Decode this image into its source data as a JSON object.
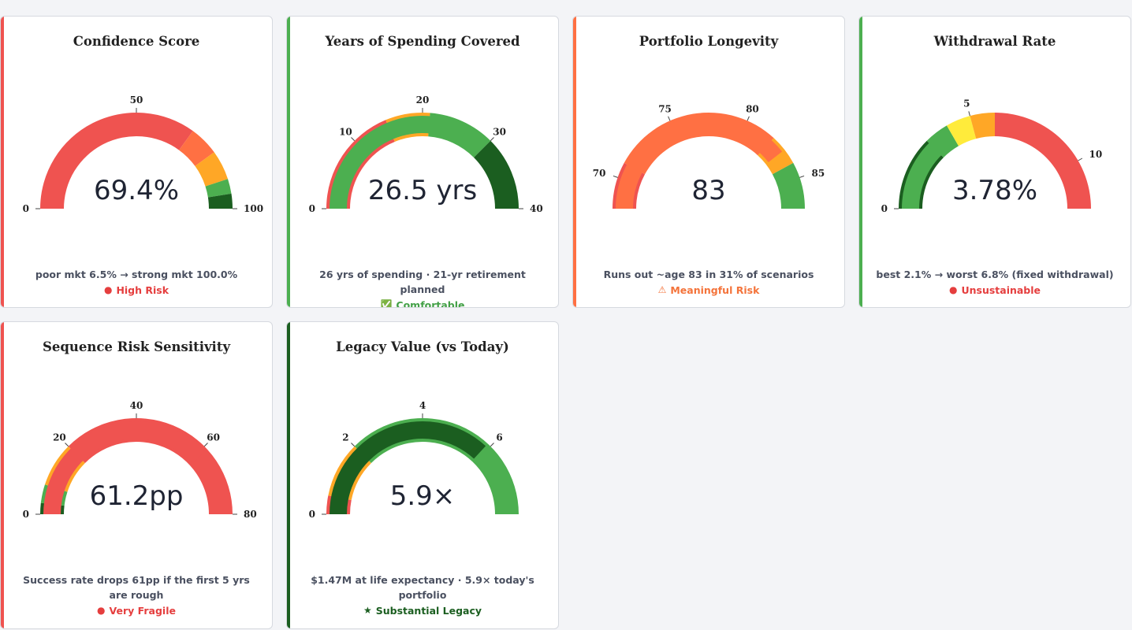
{
  "cards": [
    {
      "title": "Confidence Score",
      "value": "69.4%",
      "caption": "poor mkt 6.5% → strong mkt 100.0%",
      "status": "High Risk",
      "status_icon": "red-circle-icon",
      "status_glyph": "●",
      "accent": "#ef5350",
      "status_color": "#e53e3e",
      "gauge": {
        "min": 0,
        "max": 100,
        "ticks": [
          0,
          50,
          100
        ],
        "bands": [
          {
            "from": 0,
            "to": 70,
            "color": "#ef5350"
          },
          {
            "from": 70,
            "to": 80,
            "color": "#ff7043"
          },
          {
            "from": 80,
            "to": 90,
            "color": "#ffa726"
          },
          {
            "from": 90,
            "to": 95,
            "color": "#4caf50"
          },
          {
            "from": 95,
            "to": 100,
            "color": "#1b5e20"
          }
        ],
        "bar": null
      }
    },
    {
      "title": "Years of Spending Covered",
      "value": "26.5 yrs",
      "caption": "26 yrs of spending · 21-yr retirement planned",
      "status": "Comfortable",
      "status_icon": "check-box-icon",
      "status_glyph": "✅",
      "accent": "#4caf50",
      "status_color": "#43a047",
      "gauge": {
        "min": 0,
        "max": 40,
        "ticks": [
          0,
          10,
          20,
          30,
          40
        ],
        "bands": [
          {
            "from": 0,
            "to": 15,
            "color": "#ef5350"
          },
          {
            "from": 15,
            "to": 21,
            "color": "#ffa726"
          },
          {
            "from": 21,
            "to": 30,
            "color": "#4caf50"
          },
          {
            "from": 30,
            "to": 40,
            "color": "#1b5e20"
          }
        ],
        "bar": {
          "value": 26.5,
          "color": "#4caf50"
        }
      }
    },
    {
      "title": "Portfolio Longevity",
      "value": "83",
      "caption": "Runs out ~age 83 in 31% of scenarios",
      "status": "Meaningful Risk",
      "status_icon": "warning-icon",
      "status_glyph": "⚠",
      "accent": "#ff7043",
      "status_color": "#f4733a",
      "gauge": {
        "min": 68,
        "max": 87,
        "ticks": [
          70,
          75,
          80,
          85
        ],
        "bands": [
          {
            "from": 68,
            "to": 71,
            "color": "#ef5350"
          },
          {
            "from": 71,
            "to": 82,
            "color": "#ff7043"
          },
          {
            "from": 82,
            "to": 84,
            "color": "#ffa726"
          },
          {
            "from": 84,
            "to": 87,
            "color": "#4caf50"
          }
        ],
        "bar": {
          "value": 83,
          "color": "#ff7043"
        }
      }
    },
    {
      "title": "Withdrawal Rate",
      "value": "3.78%",
      "caption": "best 2.1% → worst 6.8% (fixed withdrawal)",
      "status": "Unsustainable",
      "status_icon": "red-circle-icon",
      "status_glyph": "●",
      "accent": "#4caf50",
      "status_color": "#e53e3e",
      "gauge": {
        "min": 0,
        "max": 12,
        "ticks": [
          0,
          5,
          10
        ],
        "bands": [
          {
            "from": 0,
            "to": 3,
            "color": "#1b5e20"
          },
          {
            "from": 3,
            "to": 4,
            "color": "#4caf50"
          },
          {
            "from": 4,
            "to": 5,
            "color": "#ffeb3b"
          },
          {
            "from": 5,
            "to": 6,
            "color": "#ffa726"
          },
          {
            "from": 6,
            "to": 12,
            "color": "#ef5350"
          }
        ],
        "bar": {
          "value": 3.78,
          "color": "#4caf50"
        }
      }
    },
    {
      "title": "Sequence Risk Sensitivity",
      "value": "61.2pp",
      "caption": "Success rate drops 61pp if the first 5 yrs are rough",
      "status": "Very Fragile",
      "status_icon": "red-circle-icon",
      "status_glyph": "●",
      "accent": "#ef5350",
      "status_color": "#e53e3e",
      "gauge": {
        "min": 0,
        "max": 80,
        "ticks": [
          0,
          20,
          40,
          60,
          80
        ],
        "bands": [
          {
            "from": 0,
            "to": 3,
            "color": "#1b5e20"
          },
          {
            "from": 3,
            "to": 8,
            "color": "#4caf50"
          },
          {
            "from": 8,
            "to": 20,
            "color": "#ffa726"
          },
          {
            "from": 20,
            "to": 80,
            "color": "#ef5350"
          }
        ],
        "bar": {
          "value": 61.2,
          "color": "#ef5350"
        }
      }
    },
    {
      "title": "Legacy Value (vs Today)",
      "value": "5.9×",
      "caption": "$1.47M at life expectancy · 5.9× today's portfolio",
      "status": "Substantial Legacy",
      "status_icon": "star-icon",
      "status_glyph": "★",
      "accent": "#1b5e20",
      "status_color": "#1b5e20",
      "gauge": {
        "min": 0,
        "max": 8,
        "ticks": [
          0,
          2,
          4,
          6
        ],
        "bands": [
          {
            "from": 0,
            "to": 0.5,
            "color": "#ef5350"
          },
          {
            "from": 0.5,
            "to": 2,
            "color": "#ffa726"
          },
          {
            "from": 2,
            "to": 8,
            "color": "#4caf50"
          }
        ],
        "bar": {
          "value": 5.9,
          "color": "#1b5e20"
        }
      }
    }
  ]
}
